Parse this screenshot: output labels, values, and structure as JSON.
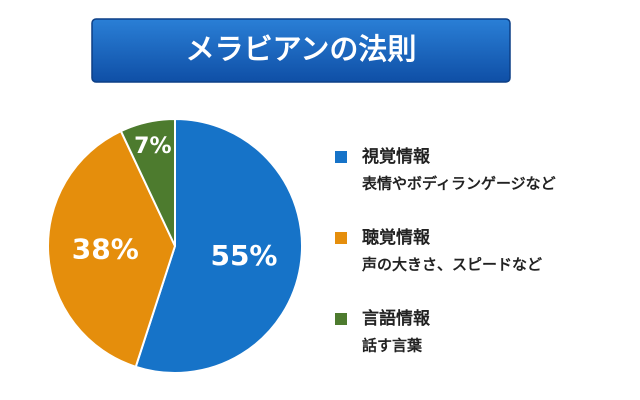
{
  "chart_data": {
    "type": "pie",
    "title": "メラビアンの法則",
    "categories": [
      "視覚情報",
      "聴覚情報",
      "言語情報"
    ],
    "descriptions": [
      "表情やボディランゲージなど",
      "声の大きさ、スピードなど",
      "話す言葉"
    ],
    "values": [
      55,
      38,
      7
    ],
    "value_labels": [
      "55%",
      "38%",
      "7%"
    ],
    "colors": [
      "#1673c8",
      "#e58e0c",
      "#4d7b2e"
    ]
  }
}
